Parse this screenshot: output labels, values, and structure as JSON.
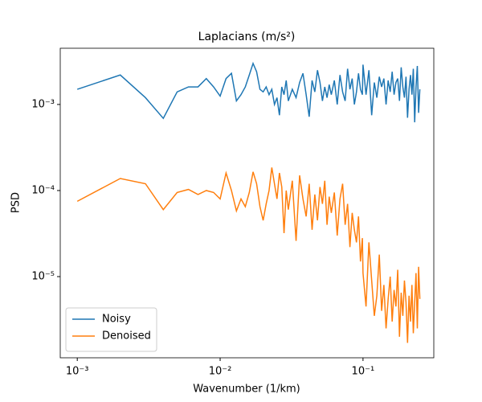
{
  "chart_data": {
    "type": "line",
    "title": "Laplacians (m/s²)",
    "xlabel": "Wavenumber (1/km)",
    "ylabel": "PSD",
    "xscale": "log",
    "yscale": "log",
    "grid": false,
    "legend": "lower left",
    "xlim": [
      0.00076,
      0.313
    ],
    "ylim": [
      1.14e-06,
      0.0045
    ],
    "xticks": [
      {
        "value": 0.001,
        "label": "10⁻³"
      },
      {
        "value": 0.01,
        "label": "10⁻²"
      },
      {
        "value": 0.1,
        "label": "10⁻¹"
      }
    ],
    "yticks": [
      {
        "value": 1e-05,
        "label": "10⁻⁵"
      },
      {
        "value": 0.0001,
        "label": "10⁻⁴"
      },
      {
        "value": 0.001,
        "label": "10⁻³"
      }
    ],
    "x": [
      0.001,
      0.002,
      0.003,
      0.004,
      0.005,
      0.006,
      0.007,
      0.008,
      0.009,
      0.01,
      0.011,
      0.012,
      0.013,
      0.014,
      0.015,
      0.016,
      0.017,
      0.018,
      0.019,
      0.02,
      0.021,
      0.022,
      0.023,
      0.024,
      0.025,
      0.026,
      0.027,
      0.028,
      0.029,
      0.03,
      0.032,
      0.034,
      0.036,
      0.038,
      0.04,
      0.042,
      0.044,
      0.046,
      0.048,
      0.05,
      0.052,
      0.054,
      0.056,
      0.058,
      0.06,
      0.063,
      0.066,
      0.069,
      0.072,
      0.075,
      0.078,
      0.081,
      0.084,
      0.087,
      0.09,
      0.093,
      0.096,
      0.099,
      0.1,
      0.105,
      0.11,
      0.115,
      0.12,
      0.125,
      0.13,
      0.135,
      0.14,
      0.145,
      0.15,
      0.155,
      0.16,
      0.165,
      0.17,
      0.175,
      0.18,
      0.185,
      0.19,
      0.195,
      0.2,
      0.205,
      0.21,
      0.215,
      0.22,
      0.225,
      0.23,
      0.235,
      0.24,
      0.245,
      0.25
    ],
    "series": [
      {
        "name": "Noisy",
        "color": "#1f77b4",
        "values": [
          0.0015,
          0.0022,
          0.0012,
          0.00069,
          0.0014,
          0.0016,
          0.0016,
          0.002,
          0.0016,
          0.00125,
          0.002,
          0.0023,
          0.0011,
          0.0013,
          0.0016,
          0.0022,
          0.003,
          0.0024,
          0.0015,
          0.0014,
          0.0016,
          0.0013,
          0.0015,
          0.001,
          0.0012,
          0.00075,
          0.0016,
          0.0013,
          0.0019,
          0.0011,
          0.0015,
          0.0012,
          0.0018,
          0.0023,
          0.0013,
          0.00072,
          0.0019,
          0.0014,
          0.0025,
          0.0018,
          0.0011,
          0.0016,
          0.0012,
          0.0017,
          0.0013,
          0.0019,
          0.001,
          0.0022,
          0.0014,
          0.0011,
          0.0026,
          0.0015,
          0.002,
          0.001,
          0.0014,
          0.0023,
          0.0015,
          0.0013,
          0.0029,
          0.0013,
          0.0025,
          0.00075,
          0.0018,
          0.0012,
          0.0021,
          0.0016,
          0.002,
          0.001,
          0.0019,
          0.0014,
          0.0024,
          0.0013,
          0.0018,
          0.002,
          0.0011,
          0.0027,
          0.0016,
          0.0012,
          0.0021,
          0.0007,
          0.0015,
          0.0022,
          0.0013,
          0.0026,
          0.00062,
          0.0016,
          0.0028,
          0.0008,
          0.0015
        ]
      },
      {
        "name": "Denoised",
        "color": "#ff7f0e",
        "values": [
          7.5e-05,
          0.000138,
          0.00012,
          6e-05,
          9.5e-05,
          0.000103,
          9e-05,
          0.0001,
          9.5e-05,
          8e-05,
          0.00016,
          0.0001,
          5.8e-05,
          8e-05,
          6.5e-05,
          9.5e-05,
          0.000165,
          0.00012,
          6.5e-05,
          4.5e-05,
          7e-05,
          0.0001,
          0.000185,
          0.00012,
          8e-05,
          0.00016,
          0.00011,
          3.2e-05,
          0.0001,
          6e-05,
          0.00013,
          2.6e-05,
          0.00015,
          8e-05,
          5e-05,
          0.00012,
          3.5e-05,
          9e-05,
          4.5e-05,
          0.00011,
          7e-05,
          0.00013,
          4e-05,
          8.5e-05,
          5.5e-05,
          9.5e-05,
          3e-05,
          8e-05,
          0.00012,
          4e-05,
          7e-05,
          2.2e-05,
          5.5e-05,
          3.5e-05,
          2.5e-05,
          5e-05,
          1.5e-05,
          2.8e-05,
          1.1e-05,
          4.5e-06,
          2.5e-05,
          9e-06,
          3.5e-06,
          6e-06,
          1.8e-05,
          4e-06,
          8e-06,
          2.5e-06,
          5.5e-06,
          1e-05,
          3e-06,
          7e-06,
          4.5e-06,
          1.2e-05,
          2e-06,
          6.5e-06,
          3.5e-06,
          9e-06,
          5e-06,
          1.7e-06,
          6e-06,
          3e-06,
          8e-06,
          2.2e-06,
          5e-06,
          1.1e-05,
          2.5e-06,
          1.3e-05,
          5.5e-06
        ]
      }
    ]
  }
}
